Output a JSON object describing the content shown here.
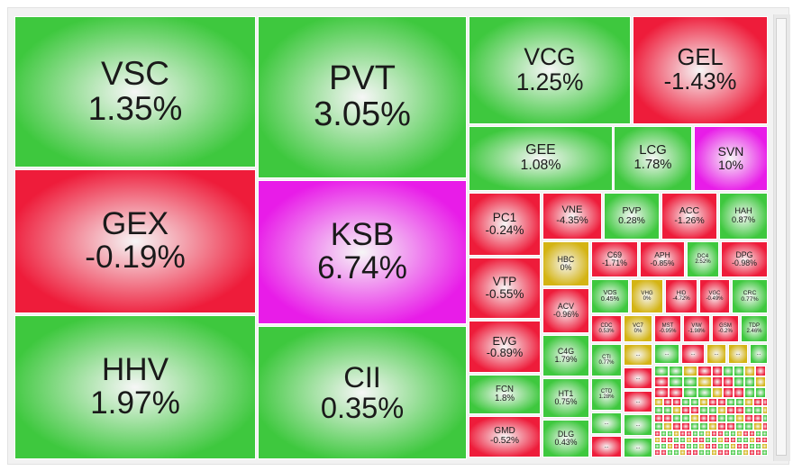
{
  "tiles": [
    {
      "label": "VSC",
      "change": "1.35%",
      "color": "#3ec83e"
    },
    {
      "label": "GEX",
      "change": "-0.19%",
      "color": "#ee1c3a"
    },
    {
      "label": "HHV",
      "change": "1.97%",
      "color": "#3ec83e"
    },
    {
      "label": "PVT",
      "change": "3.05%",
      "color": "#3ec83e"
    },
    {
      "label": "KSB",
      "change": "6.74%",
      "color": "#e81ce8"
    },
    {
      "label": "CII",
      "change": "0.35%",
      "color": "#3ec83e"
    },
    {
      "label": "VCG",
      "change": "1.25%",
      "color": "#3ec83e"
    },
    {
      "label": "GEL",
      "change": "-1.43%",
      "color": "#ee1c3a"
    },
    {
      "label": "GEE",
      "change": "1.08%",
      "color": "#3ec83e"
    },
    {
      "label": "LCG",
      "change": "1.78%",
      "color": "#3ec83e"
    },
    {
      "label": "SVN",
      "change": "10%",
      "color": "#e81ce8"
    },
    {
      "label": "PC1",
      "change": "-0.24%",
      "color": "#ee1c3a"
    },
    {
      "label": "VTP",
      "change": "-0.55%",
      "color": "#ee1c3a"
    },
    {
      "label": "EVG",
      "change": "-0.89%",
      "color": "#ee1c3a"
    },
    {
      "label": "FCN",
      "change": "1.8%",
      "color": "#3ec83e"
    },
    {
      "label": "GMD",
      "change": "-0.52%",
      "color": "#ee1c3a"
    },
    {
      "label": "VNE",
      "change": "-4.35%",
      "color": "#ee1c3a"
    },
    {
      "label": "PVP",
      "change": "0.28%",
      "color": "#3ec83e"
    },
    {
      "label": "ACC",
      "change": "-1.26%",
      "color": "#ee1c3a"
    },
    {
      "label": "HAH",
      "change": "0.87%",
      "color": "#3ec83e"
    },
    {
      "label": "HBC",
      "change": "0%",
      "color": "#d4b414"
    },
    {
      "label": "ACV",
      "change": "-0.96%",
      "color": "#ee1c3a"
    },
    {
      "label": "C4G",
      "change": "1.79%",
      "color": "#3ec83e"
    },
    {
      "label": "HT1",
      "change": "0.75%",
      "color": "#3ec83e"
    },
    {
      "label": "DLG",
      "change": "0.43%",
      "color": "#3ec83e"
    },
    {
      "label": "C69",
      "change": "-1.71%",
      "color": "#ee1c3a"
    },
    {
      "label": "APH",
      "change": "-0.85%",
      "color": "#ee1c3a"
    },
    {
      "label": "DC4",
      "change": "2.52%",
      "color": "#3ec83e"
    },
    {
      "label": "DPG",
      "change": "-0.98%",
      "color": "#ee1c3a"
    },
    {
      "label": "VOS",
      "change": "0.45%",
      "color": "#3ec83e"
    },
    {
      "label": "VHG",
      "change": "0%",
      "color": "#d4b414"
    },
    {
      "label": "HID",
      "change": "-4.72%",
      "color": "#ee1c3a"
    },
    {
      "label": "VGC",
      "change": "-0.49%",
      "color": "#ee1c3a"
    },
    {
      "label": "CRC",
      "change": "0.77%",
      "color": "#3ec83e"
    },
    {
      "label": "CDC",
      "change": "0.53%",
      "color": "#ee1c3a"
    },
    {
      "label": "VC7",
      "change": "0%",
      "color": "#d4b414"
    },
    {
      "label": "MST",
      "change": "-0.95%",
      "color": "#ee1c3a"
    },
    {
      "label": "VIW",
      "change": "-1.98%",
      "color": "#ee1c3a"
    },
    {
      "label": "GSM",
      "change": "-0.2%",
      "color": "#ee1c3a"
    },
    {
      "label": "TDP",
      "change": "2.46%",
      "color": "#3ec83e"
    },
    {
      "label": "CTI",
      "change": "0.77%",
      "color": "#3ec83e"
    },
    {
      "label": "CTD",
      "change": "1.28%",
      "color": "#3ec83e"
    },
    {
      "label": "...",
      "color": "#3ec83e"
    },
    {
      "label": "...",
      "color": "#ee1c3a"
    },
    {
      "label": "...",
      "color": "#d4b414"
    },
    {
      "label": "...",
      "color": "#ee1c3a"
    },
    {
      "label": "...",
      "color": "#ee1c3a"
    },
    {
      "label": "...",
      "color": "#3ec83e"
    },
    {
      "label": "...",
      "color": "#3ec83e"
    },
    {
      "label": "...",
      "color": "#3ec83e"
    },
    {
      "label": "...",
      "color": "#ee1c3a"
    },
    {
      "label": "...",
      "color": "#d4b414"
    },
    {
      "label": "...",
      "color": "#d4b414"
    },
    {
      "label": "...",
      "color": "#3ec83e"
    }
  ]
}
